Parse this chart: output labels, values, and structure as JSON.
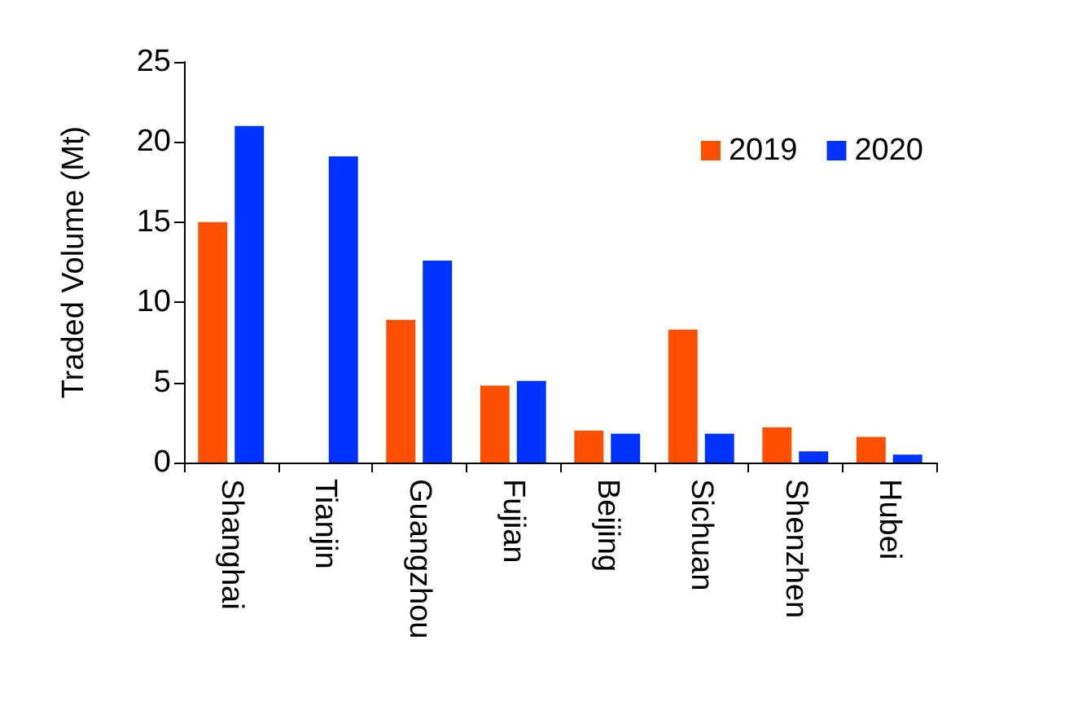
{
  "chart_data": {
    "type": "bar",
    "ylabel": "Traded Volume (Mt)",
    "categories": [
      "Shanghai",
      "Tianjin",
      "Guangzhou",
      "Fujian",
      "Beijing",
      "Sichuan",
      "Shenzhen",
      "Hubei"
    ],
    "series": [
      {
        "name": "2019",
        "color": "#ff5000",
        "values": [
          15,
          null,
          8.9,
          4.8,
          2.0,
          8.3,
          2.2,
          1.6
        ]
      },
      {
        "name": "2020",
        "color": "#0033ff",
        "values": [
          21,
          19.1,
          12.6,
          5.1,
          1.8,
          1.8,
          0.7,
          0.5
        ]
      }
    ],
    "ylim": [
      0,
      25
    ],
    "yticks": [
      0,
      5,
      10,
      15,
      20,
      25
    ],
    "grid": false,
    "legend": "top right"
  }
}
